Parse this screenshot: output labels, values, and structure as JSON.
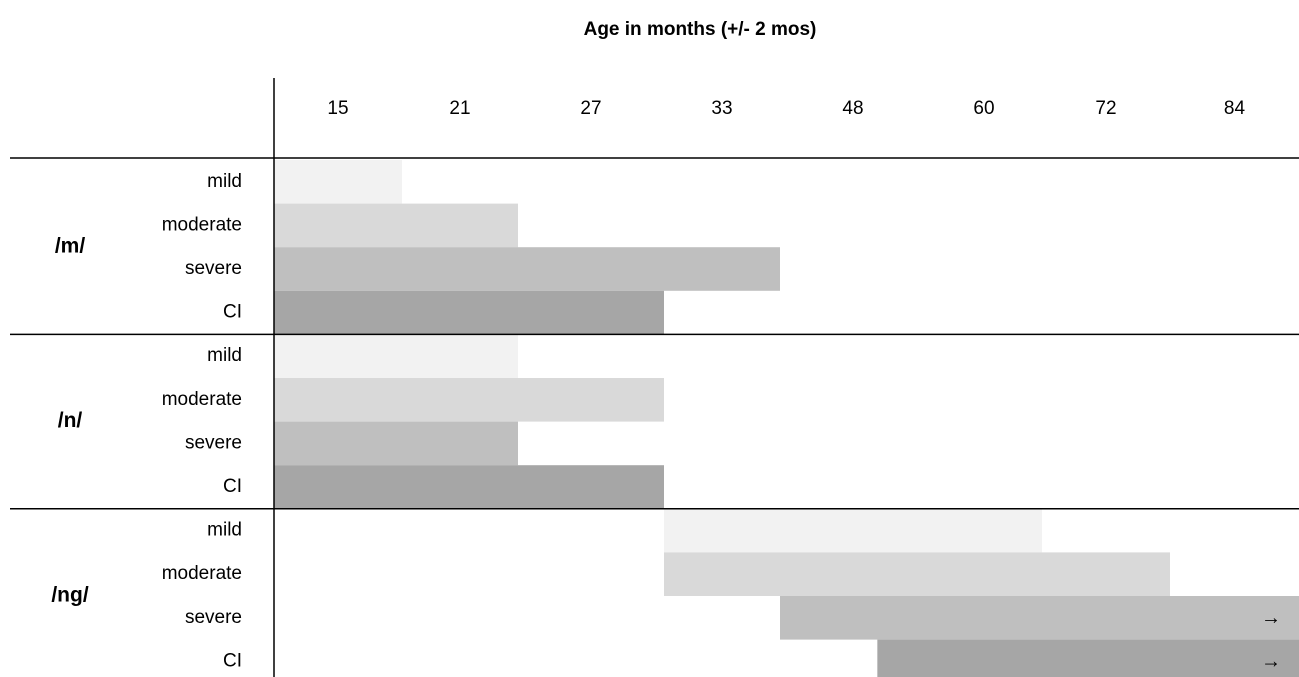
{
  "chart_data": {
    "type": "bar",
    "subtype": "gantt",
    "title": "Age in months (+/- 2 mos)",
    "x_ticks": [
      15,
      21,
      27,
      33,
      48,
      60,
      72,
      84
    ],
    "x_boundaries": [
      12,
      18,
      24,
      30,
      36,
      54,
      66,
      78,
      90
    ],
    "severity_levels": [
      "mild",
      "moderate",
      "severe",
      "CI"
    ],
    "severity_colors": [
      "#f2f2f2",
      "#d9d9d9",
      "#bfbfbf",
      "#a6a6a6"
    ],
    "continues_symbol": "→",
    "groups": [
      {
        "label": "/m/",
        "bars": [
          {
            "level": "mild",
            "start": 12,
            "end": 18,
            "continues": false
          },
          {
            "level": "moderate",
            "start": 12,
            "end": 24,
            "continues": false
          },
          {
            "level": "severe",
            "start": 12,
            "end": 36,
            "continues": false
          },
          {
            "level": "CI",
            "start": 12,
            "end": 30,
            "continues": false
          }
        ]
      },
      {
        "label": "/n/",
        "bars": [
          {
            "level": "mild",
            "start": 12,
            "end": 24,
            "continues": false
          },
          {
            "level": "moderate",
            "start": 12,
            "end": 30,
            "continues": false
          },
          {
            "level": "severe",
            "start": 12,
            "end": 24,
            "continues": false
          },
          {
            "level": "CI",
            "start": 12,
            "end": 30,
            "continues": false
          }
        ]
      },
      {
        "label": "/ng/",
        "bars": [
          {
            "level": "mild",
            "start": 30,
            "end": 66,
            "continues": false
          },
          {
            "level": "moderate",
            "start": 30,
            "end": 78,
            "continues": false
          },
          {
            "level": "severe",
            "start": 36,
            "end": 90,
            "continues": true
          },
          {
            "level": "CI",
            "start": 48,
            "end": 90,
            "continues": true
          }
        ]
      }
    ]
  }
}
